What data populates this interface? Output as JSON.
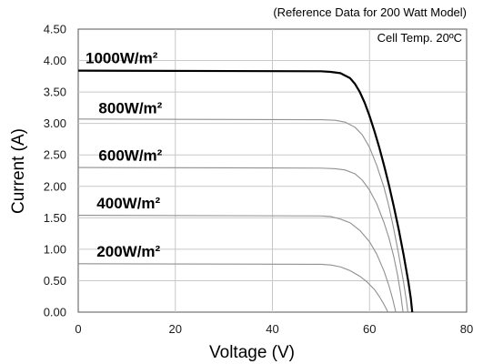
{
  "chart_data": {
    "type": "line",
    "subtitle": "(Reference Data for 200 Watt Model)",
    "annotation": "Cell Temp. 20ºC",
    "xlabel": "Voltage (V)",
    "ylabel": "Current (A)",
    "xlim": [
      0,
      80
    ],
    "ylim": [
      0,
      4.5
    ],
    "x_ticks": [
      0,
      20,
      40,
      60,
      80
    ],
    "y_ticks": [
      0.0,
      0.5,
      1.0,
      1.5,
      2.0,
      2.5,
      3.0,
      3.5,
      4.0,
      4.5
    ],
    "x_tick_labels": [
      "0",
      "20",
      "40",
      "60",
      "80"
    ],
    "y_tick_labels": [
      "0.00",
      "0.50",
      "1.00",
      "1.50",
      "2.00",
      "2.50",
      "3.00",
      "3.50",
      "4.00",
      "4.50"
    ],
    "grid": true,
    "series": [
      {
        "name": "1000W/m²",
        "color": "#000000",
        "points": [
          [
            0,
            3.84
          ],
          [
            50,
            3.83
          ],
          [
            52,
            3.82
          ],
          [
            54,
            3.8
          ],
          [
            56,
            3.72
          ],
          [
            57,
            3.63
          ],
          [
            58,
            3.5
          ],
          [
            59,
            3.33
          ],
          [
            60,
            3.12
          ],
          [
            61,
            2.88
          ],
          [
            62,
            2.62
          ],
          [
            63,
            2.33
          ],
          [
            64,
            2.02
          ],
          [
            65,
            1.68
          ],
          [
            66,
            1.32
          ],
          [
            67,
            0.92
          ],
          [
            68,
            0.48
          ],
          [
            68.5,
            0.22
          ],
          [
            68.8,
            0.0
          ]
        ]
      },
      {
        "name": "800W/m²",
        "color": "#909090",
        "points": [
          [
            0,
            3.07
          ],
          [
            50,
            3.06
          ],
          [
            53,
            3.05
          ],
          [
            55,
            3.02
          ],
          [
            57,
            2.94
          ],
          [
            58.5,
            2.82
          ],
          [
            60,
            2.62
          ],
          [
            61.5,
            2.33
          ],
          [
            63,
            1.98
          ],
          [
            64,
            1.68
          ],
          [
            65,
            1.32
          ],
          [
            66,
            0.92
          ],
          [
            67,
            0.48
          ],
          [
            67.6,
            0.18
          ],
          [
            67.9,
            0.0
          ]
        ]
      },
      {
        "name": "600W/m²",
        "color": "#909090",
        "points": [
          [
            0,
            2.3
          ],
          [
            50,
            2.29
          ],
          [
            53,
            2.28
          ],
          [
            55,
            2.26
          ],
          [
            57,
            2.2
          ],
          [
            58.5,
            2.1
          ],
          [
            60,
            1.94
          ],
          [
            61.5,
            1.72
          ],
          [
            63,
            1.42
          ],
          [
            64,
            1.18
          ],
          [
            65,
            0.88
          ],
          [
            65.8,
            0.58
          ],
          [
            66.4,
            0.3
          ],
          [
            66.9,
            0.0
          ]
        ]
      },
      {
        "name": "400W/m²",
        "color": "#909090",
        "points": [
          [
            0,
            1.54
          ],
          [
            50,
            1.53
          ],
          [
            52,
            1.52
          ],
          [
            54,
            1.48
          ],
          [
            56,
            1.42
          ],
          [
            58,
            1.3
          ],
          [
            60,
            1.12
          ],
          [
            61.5,
            0.92
          ],
          [
            63,
            0.65
          ],
          [
            64,
            0.42
          ],
          [
            64.8,
            0.2
          ],
          [
            65.4,
            0.0
          ]
        ]
      },
      {
        "name": "200W/m²",
        "color": "#909090",
        "points": [
          [
            0,
            0.77
          ],
          [
            50,
            0.76
          ],
          [
            52,
            0.75
          ],
          [
            54,
            0.72
          ],
          [
            56,
            0.66
          ],
          [
            58,
            0.57
          ],
          [
            59.5,
            0.48
          ],
          [
            61,
            0.36
          ],
          [
            62,
            0.25
          ],
          [
            63,
            0.12
          ],
          [
            63.8,
            0.0
          ]
        ]
      }
    ],
    "label_positions_data": [
      {
        "series": 0,
        "x": 1.5,
        "y": 3.96
      },
      {
        "series": 1,
        "x": 4.2,
        "y": 3.16
      },
      {
        "series": 2,
        "x": 4.2,
        "y": 2.41
      },
      {
        "series": 3,
        "x": 3.8,
        "y": 1.65
      },
      {
        "series": 4,
        "x": 3.8,
        "y": 0.88
      }
    ]
  }
}
